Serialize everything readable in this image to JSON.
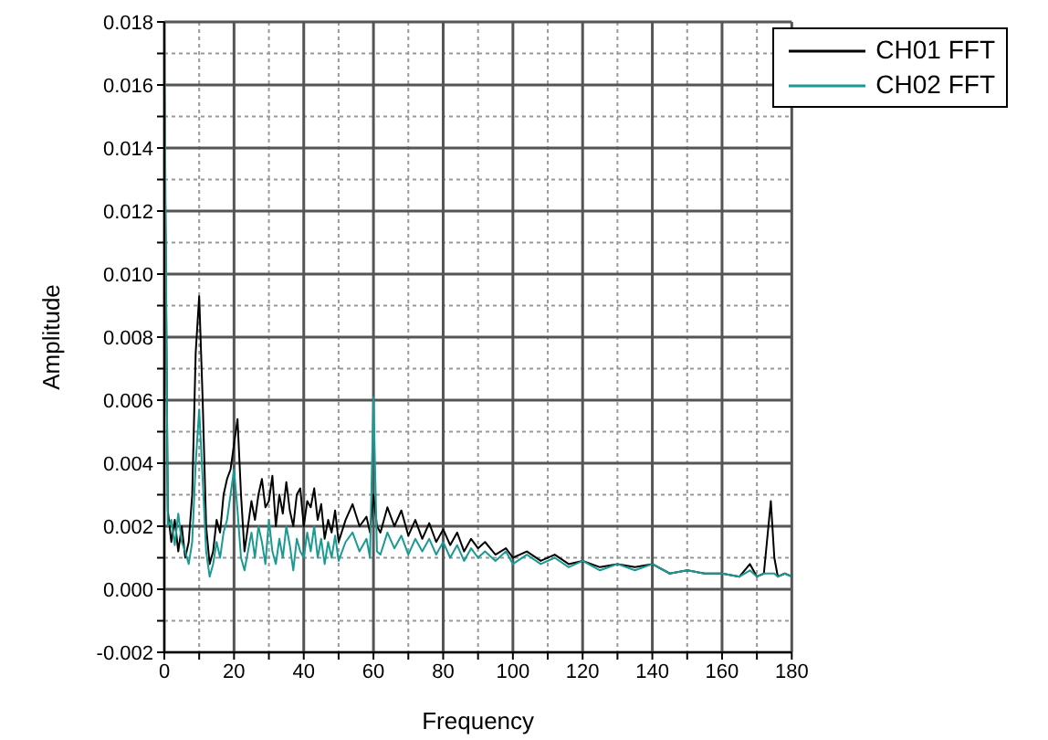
{
  "chart_data": {
    "type": "line",
    "xlabel": "Frequency",
    "ylabel": "Amplitude",
    "x": [
      0,
      1,
      2,
      3,
      4,
      5,
      6,
      7,
      8,
      9,
      10,
      11,
      12,
      13,
      14,
      15,
      16,
      17,
      18,
      19,
      20,
      21,
      22,
      23,
      24,
      25,
      26,
      27,
      28,
      29,
      30,
      31,
      32,
      33,
      34,
      35,
      36,
      37,
      38,
      39,
      40,
      41,
      42,
      43,
      44,
      45,
      46,
      47,
      48,
      49,
      50,
      52,
      54,
      56,
      58,
      59,
      60,
      61,
      62,
      64,
      66,
      68,
      70,
      72,
      74,
      76,
      78,
      80,
      82,
      84,
      86,
      88,
      90,
      92,
      95,
      98,
      100,
      104,
      108,
      112,
      116,
      120,
      125,
      130,
      135,
      140,
      145,
      150,
      155,
      160,
      165,
      168,
      170,
      172,
      174,
      175,
      176,
      178,
      180
    ],
    "series": [
      {
        "name": "CH01 FFT",
        "color": "#000000",
        "values": [
          0.016,
          0.0025,
          0.0015,
          0.0022,
          0.0012,
          0.002,
          0.001,
          0.0015,
          0.003,
          0.0075,
          0.0093,
          0.006,
          0.002,
          0.0008,
          0.0012,
          0.0022,
          0.0018,
          0.003,
          0.0035,
          0.0038,
          0.0046,
          0.0054,
          0.003,
          0.0012,
          0.002,
          0.0028,
          0.0022,
          0.003,
          0.0035,
          0.0026,
          0.0028,
          0.0036,
          0.002,
          0.003,
          0.0024,
          0.0034,
          0.0025,
          0.002,
          0.003,
          0.0032,
          0.002,
          0.0028,
          0.0026,
          0.0032,
          0.0022,
          0.0027,
          0.0016,
          0.0022,
          0.0018,
          0.0025,
          0.0015,
          0.0022,
          0.0027,
          0.002,
          0.0023,
          0.0018,
          0.003,
          0.002,
          0.0018,
          0.0026,
          0.002,
          0.0025,
          0.0017,
          0.0022,
          0.0016,
          0.0021,
          0.0015,
          0.0019,
          0.0014,
          0.0018,
          0.0012,
          0.0016,
          0.0013,
          0.0015,
          0.0011,
          0.0013,
          0.001,
          0.0012,
          0.0009,
          0.0011,
          0.0008,
          0.0009,
          0.0007,
          0.0008,
          0.0007,
          0.0008,
          0.0005,
          0.0006,
          0.0005,
          0.0005,
          0.0004,
          0.0008,
          0.0004,
          0.0005,
          0.0028,
          0.001,
          0.0004,
          0.0005,
          0.0004
        ]
      },
      {
        "name": "CH02 FFT",
        "color": "#1a9a92",
        "values": [
          0.018,
          0.002,
          0.0022,
          0.0014,
          0.0024,
          0.0015,
          0.0012,
          0.0008,
          0.0015,
          0.004,
          0.0057,
          0.0035,
          0.0012,
          0.0004,
          0.0008,
          0.0015,
          0.001,
          0.0018,
          0.0022,
          0.003,
          0.0038,
          0.0025,
          0.001,
          0.0006,
          0.0012,
          0.0018,
          0.001,
          0.002,
          0.0015,
          0.0008,
          0.0022,
          0.0012,
          0.0008,
          0.0016,
          0.001,
          0.002,
          0.0014,
          0.0006,
          0.0016,
          0.0012,
          0.001,
          0.0018,
          0.0012,
          0.002,
          0.001,
          0.0016,
          0.0008,
          0.0015,
          0.001,
          0.0017,
          0.0009,
          0.0015,
          0.0018,
          0.0012,
          0.0016,
          0.001,
          0.0061,
          0.0012,
          0.0011,
          0.0018,
          0.0013,
          0.0017,
          0.0011,
          0.0016,
          0.0012,
          0.0016,
          0.0011,
          0.0015,
          0.001,
          0.0014,
          0.0009,
          0.0013,
          0.001,
          0.0012,
          0.0009,
          0.0012,
          0.0008,
          0.0011,
          0.0008,
          0.001,
          0.0007,
          0.0009,
          0.0006,
          0.0008,
          0.0006,
          0.0008,
          0.0005,
          0.0006,
          0.0005,
          0.0005,
          0.0004,
          0.0006,
          0.0004,
          0.0005,
          0.0005,
          0.0005,
          0.0004,
          0.0005,
          0.0004
        ]
      }
    ],
    "xlim": [
      0,
      180
    ],
    "xticks": [
      0,
      {
        "value": 10,
        "label": null
      },
      20,
      {
        "value": 30,
        "label": null
      },
      40,
      {
        "value": 50,
        "label": null
      },
      60,
      {
        "value": 70,
        "label": null
      },
      80,
      {
        "value": 90,
        "label": null
      },
      100,
      {
        "value": 110,
        "label": null
      },
      120,
      {
        "value": 130,
        "label": null
      },
      140,
      {
        "value": 150,
        "label": null
      },
      160,
      {
        "value": 170,
        "label": null
      },
      180
    ],
    "ylim": [
      -0.002,
      0.018
    ],
    "yticks": [
      {
        "value": -0.002,
        "label": "-0.002"
      },
      {
        "value": -0.001,
        "label": null
      },
      {
        "value": 0,
        "label": "0.000"
      },
      {
        "value": 0.001,
        "label": null
      },
      {
        "value": 0.002,
        "label": "0.002"
      },
      {
        "value": 0.003,
        "label": null
      },
      {
        "value": 0.004,
        "label": "0.004"
      },
      {
        "value": 0.005,
        "label": null
      },
      {
        "value": 0.006,
        "label": "0.006"
      },
      {
        "value": 0.007,
        "label": null
      },
      {
        "value": 0.008,
        "label": "0.008"
      },
      {
        "value": 0.009,
        "label": null
      },
      {
        "value": 0.01,
        "label": "0.010"
      },
      {
        "value": 0.011,
        "label": null
      },
      {
        "value": 0.012,
        "label": "0.012"
      },
      {
        "value": 0.013,
        "label": null
      },
      {
        "value": 0.014,
        "label": "0.014"
      },
      {
        "value": 0.015,
        "label": null
      },
      {
        "value": 0.016,
        "label": "0.016"
      },
      {
        "value": 0.017,
        "label": null
      },
      {
        "value": 0.018,
        "label": "0.018"
      }
    ],
    "grid": true,
    "legend": "top right",
    "marker": "none",
    "line_style": "solid"
  }
}
